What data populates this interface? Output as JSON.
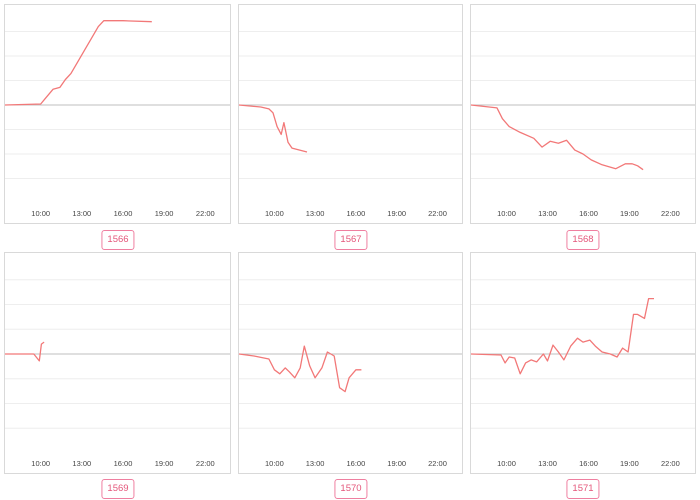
{
  "colors": {
    "line": "#f27878",
    "baseline": "#bfbfbf",
    "grid": "#eeeeee",
    "badge": "#e4567a"
  },
  "chart_data": [
    {
      "type": "line",
      "id": "1566",
      "x_ticks": [
        "10:00",
        "13:00",
        "16:00",
        "19:00",
        "22:00"
      ],
      "x_tick_values": [
        10,
        13,
        16,
        19,
        22
      ],
      "xlim": [
        7.4,
        23.8
      ],
      "ylim": [
        -100,
        100
      ],
      "baseline": 0,
      "grid": true,
      "x": [
        7.4,
        10.0,
        10.3,
        10.9,
        11.4,
        11.8,
        12.2,
        12.7,
        13.2,
        13.7,
        14.2,
        14.6,
        16.0,
        18.1
      ],
      "y": [
        0,
        1,
        6,
        16,
        18,
        26,
        32,
        44,
        56,
        68,
        80,
        86,
        86,
        85
      ]
    },
    {
      "type": "line",
      "id": "1567",
      "x_ticks": [
        "10:00",
        "13:00",
        "16:00",
        "19:00",
        "22:00"
      ],
      "x_tick_values": [
        10,
        13,
        16,
        19,
        22
      ],
      "xlim": [
        7.4,
        23.8
      ],
      "ylim": [
        -100,
        100
      ],
      "baseline": 0,
      "grid": true,
      "x": [
        7.4,
        9.0,
        9.6,
        9.9,
        10.2,
        10.5,
        10.7,
        11.0,
        11.3,
        12.4
      ],
      "y": [
        0,
        -2,
        -4,
        -8,
        -22,
        -30,
        -18,
        -38,
        -44,
        -48
      ]
    },
    {
      "type": "line",
      "id": "1568",
      "x_ticks": [
        "10:00",
        "13:00",
        "16:00",
        "19:00",
        "22:00"
      ],
      "x_tick_values": [
        10,
        13,
        16,
        19,
        22
      ],
      "xlim": [
        7.4,
        23.8
      ],
      "ylim": [
        -100,
        100
      ],
      "baseline": 0,
      "grid": true,
      "x": [
        7.4,
        9.3,
        9.7,
        10.2,
        11.0,
        12.0,
        12.6,
        13.2,
        13.8,
        14.4,
        15.0,
        15.6,
        16.2,
        17.0,
        18.0,
        18.7,
        19.2,
        19.6,
        20.0
      ],
      "y": [
        0,
        -3,
        -14,
        -22,
        -28,
        -34,
        -43,
        -37,
        -39,
        -36,
        -46,
        -50,
        -56,
        -61,
        -65,
        -60,
        -60,
        -62,
        -66
      ]
    },
    {
      "type": "line",
      "id": "1569",
      "x_ticks": [
        "10:00",
        "13:00",
        "16:00",
        "19:00",
        "22:00"
      ],
      "x_tick_values": [
        10,
        13,
        16,
        19,
        22
      ],
      "xlim": [
        7.4,
        23.8
      ],
      "ylim": [
        -100,
        100
      ],
      "baseline": 0,
      "grid": true,
      "x": [
        7.4,
        9.5,
        9.9,
        10.05,
        10.25
      ],
      "y": [
        0,
        0,
        -7,
        10,
        12
      ]
    },
    {
      "type": "line",
      "id": "1570",
      "x_ticks": [
        "10:00",
        "13:00",
        "16:00",
        "19:00",
        "22:00"
      ],
      "x_tick_values": [
        10,
        13,
        16,
        19,
        22
      ],
      "xlim": [
        7.4,
        23.8
      ],
      "ylim": [
        -100,
        100
      ],
      "baseline": 0,
      "grid": true,
      "x": [
        7.4,
        8.5,
        9.6,
        10.0,
        10.4,
        10.8,
        11.1,
        11.5,
        11.9,
        12.2,
        12.6,
        13.0,
        13.5,
        13.9,
        14.4,
        14.8,
        15.2,
        15.5,
        16.0,
        16.4
      ],
      "y": [
        0,
        -2,
        -5,
        -16,
        -20,
        -14,
        -18,
        -24,
        -14,
        8,
        -12,
        -24,
        -14,
        2,
        -2,
        -34,
        -38,
        -24,
        -16,
        -16
      ]
    },
    {
      "type": "line",
      "id": "1571",
      "x_ticks": [
        "10:00",
        "13:00",
        "16:00",
        "19:00",
        "22:00"
      ],
      "x_tick_values": [
        10,
        13,
        16,
        19,
        22
      ],
      "xlim": [
        7.4,
        23.8
      ],
      "ylim": [
        -100,
        100
      ],
      "baseline": 0,
      "grid": true,
      "x": [
        7.4,
        9.6,
        9.9,
        10.2,
        10.6,
        11.0,
        11.4,
        11.8,
        12.2,
        12.7,
        13.0,
        13.4,
        13.8,
        14.2,
        14.7,
        15.2,
        15.6,
        16.1,
        16.5,
        17.0,
        17.6,
        18.1,
        18.5,
        18.9,
        19.3,
        19.6,
        20.1,
        20.4,
        20.8
      ],
      "y": [
        0,
        -1,
        -9,
        -3,
        -4,
        -20,
        -9,
        -6,
        -8,
        0,
        -7,
        9,
        2,
        -6,
        8,
        16,
        12,
        14,
        8,
        2,
        0,
        -3,
        6,
        2,
        40,
        40,
        36,
        56,
        56
      ]
    }
  ],
  "badges": [
    "1566",
    "1567",
    "1568",
    "1569",
    "1570",
    "1571"
  ]
}
